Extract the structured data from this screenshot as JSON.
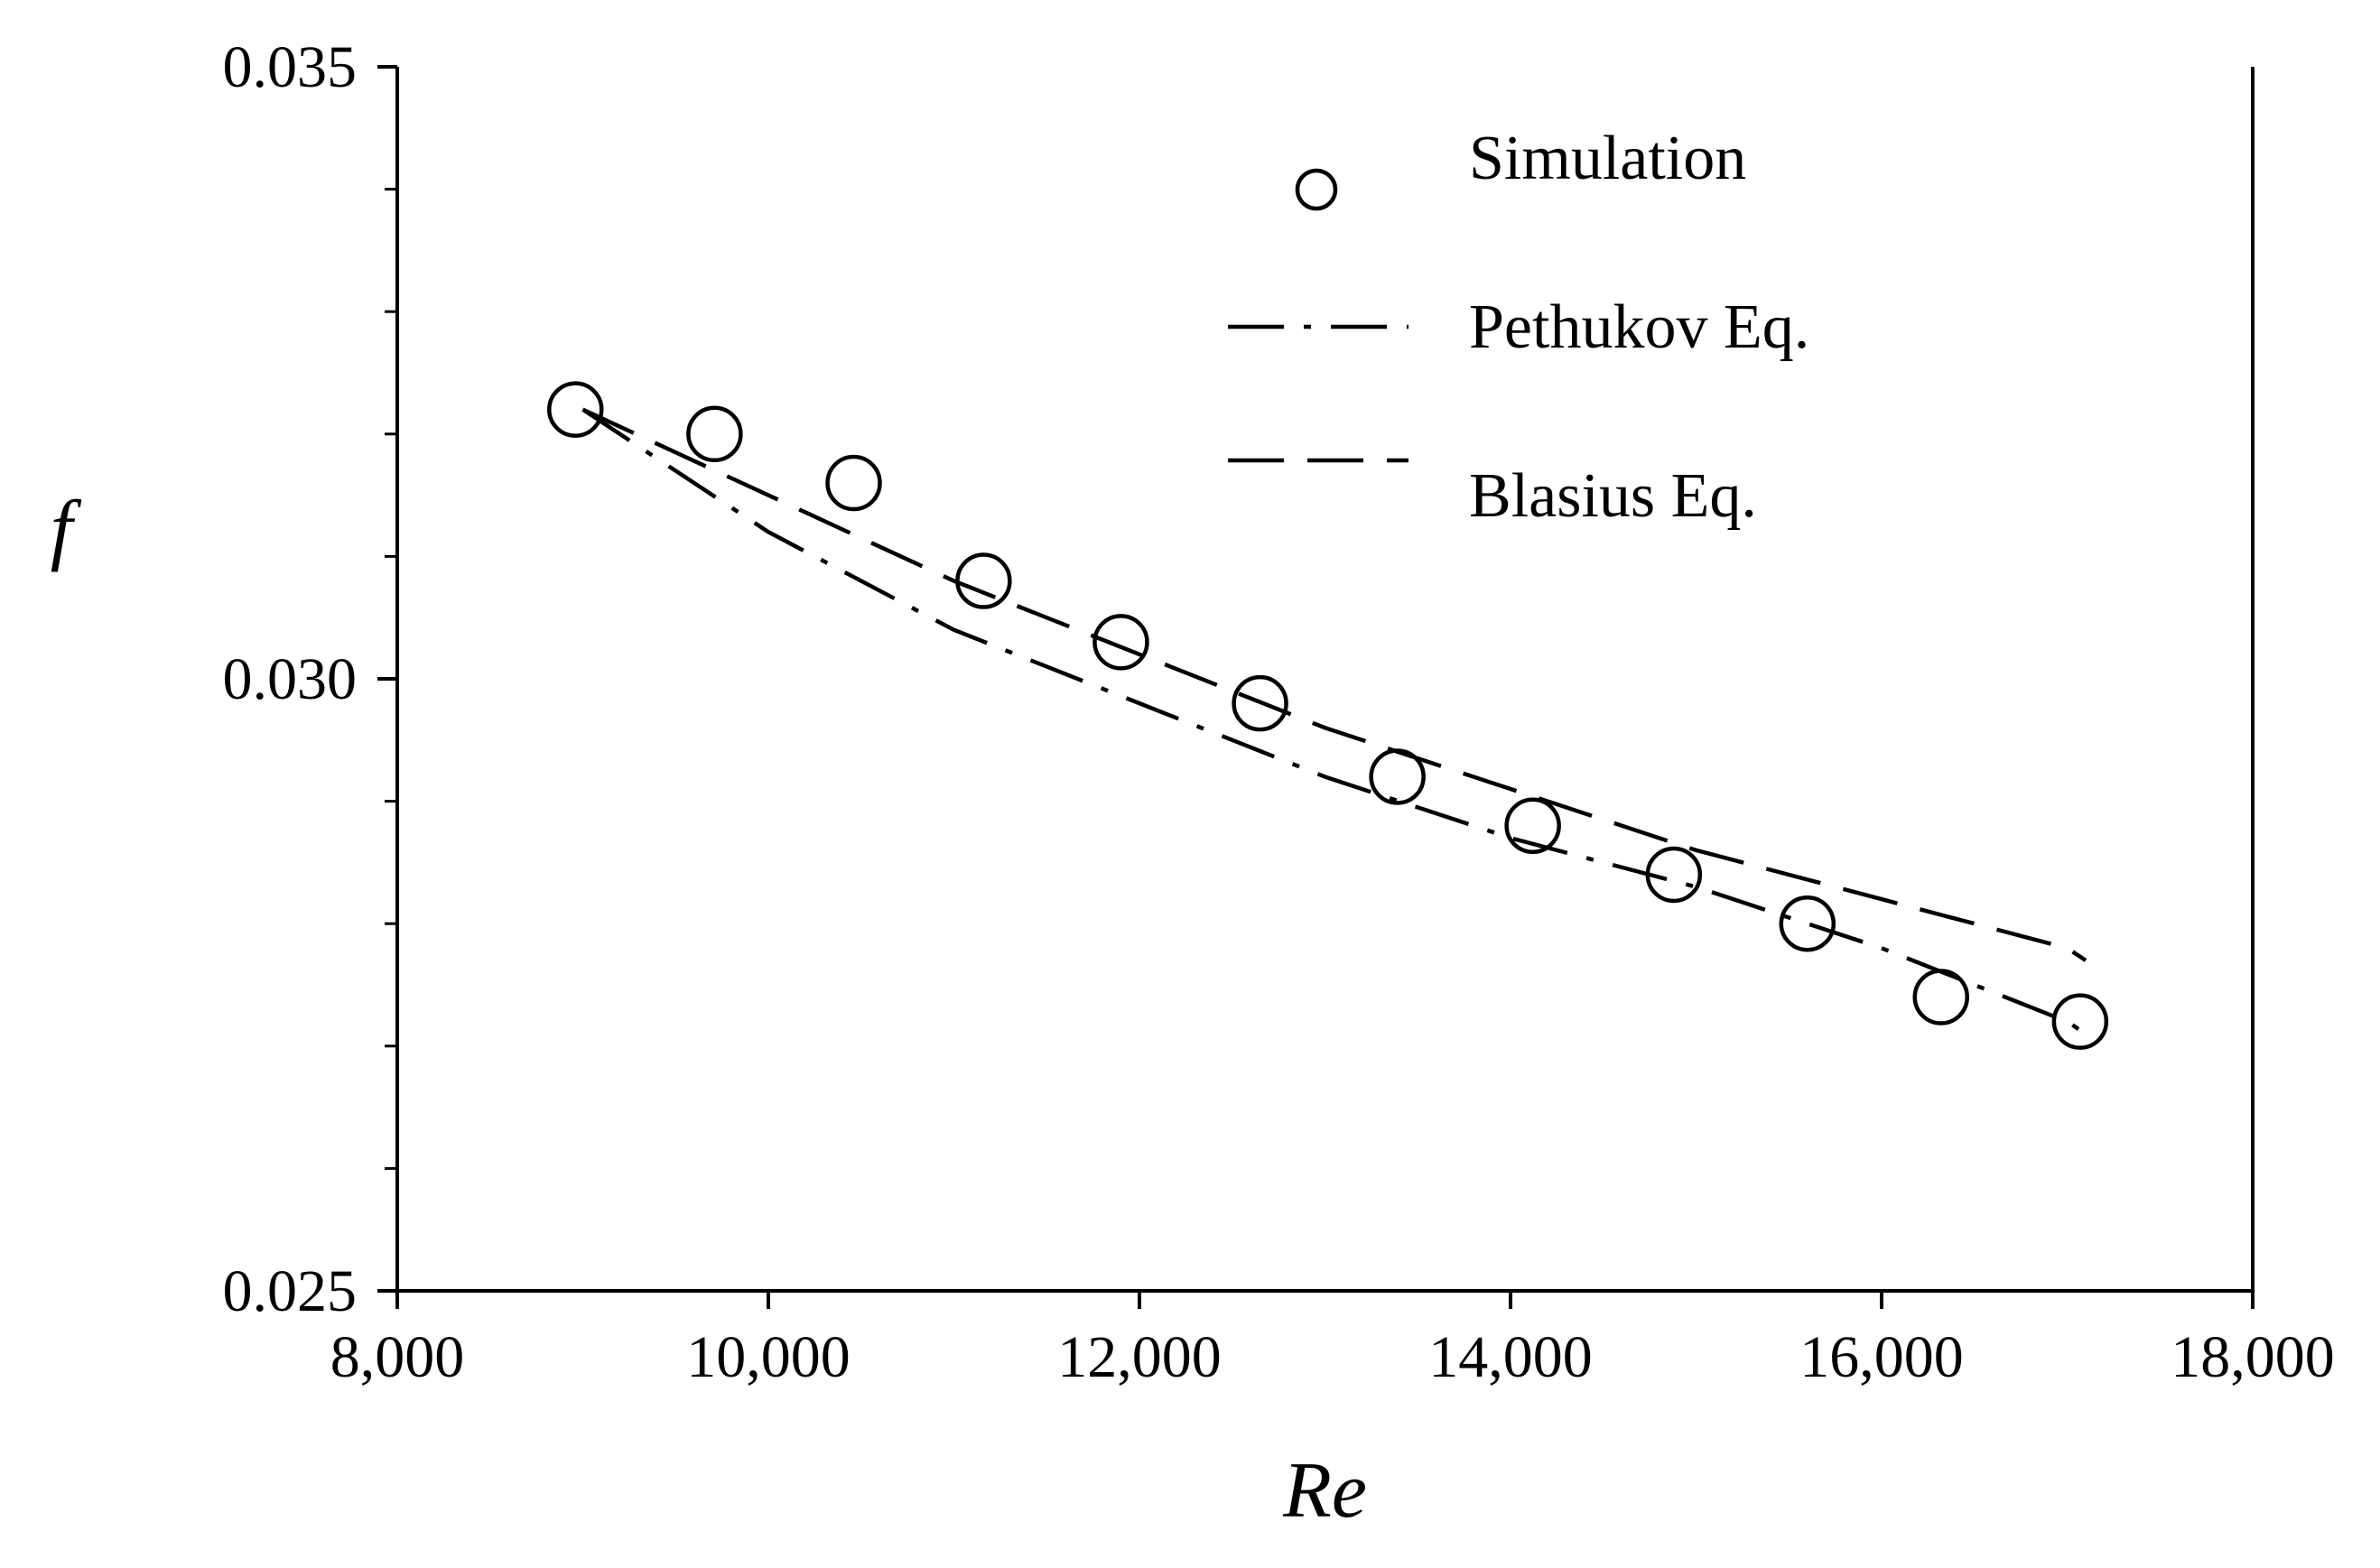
{
  "chart_data": {
    "type": "scatter",
    "title": "",
    "xlabel": "Re",
    "ylabel": "f",
    "xlim": [
      8000,
      18000
    ],
    "ylim": [
      0.025,
      0.035
    ],
    "x_major_ticks": [
      8000,
      10000,
      12000,
      14000,
      16000,
      18000
    ],
    "x_tick_labels": [
      "8,000",
      "10,000",
      "12,000",
      "14,000",
      "16,000",
      "18,000"
    ],
    "y_major_ticks": [
      0.025,
      0.03,
      0.035
    ],
    "y_tick_labels": [
      "0.025",
      "0.030",
      "0.035"
    ],
    "y_minor_ticks": [
      0.026,
      0.027,
      0.028,
      0.029,
      0.031,
      0.032,
      0.033,
      0.034
    ],
    "grid": false,
    "legend_position": "top-right",
    "series": [
      {
        "name": "Simulation",
        "style": "open-circle",
        "x": [
          8960,
          9710,
          10460,
          11160,
          11900,
          12650,
          13390,
          14120,
          14880,
          15600,
          16320,
          17070
        ],
        "y": [
          0.0322,
          0.032,
          0.0316,
          0.0308,
          0.0303,
          0.0298,
          0.0292,
          0.0288,
          0.0284,
          0.028,
          0.0274,
          0.0272
        ]
      },
      {
        "name": "Pethukov Eq.",
        "style": "dash-dot",
        "x": [
          9000,
          10000,
          11000,
          12000,
          13000,
          14000,
          15000,
          16000,
          17000,
          17100
        ],
        "y": [
          0.0322,
          0.0312,
          0.0304,
          0.0298,
          0.0292,
          0.0287,
          0.0283,
          0.0278,
          0.0272,
          0.0271
        ]
      },
      {
        "name": "Blasius Eq.",
        "style": "dashed",
        "x": [
          9000,
          10000,
          11000,
          12000,
          13000,
          14000,
          15000,
          16000,
          17000,
          17100
        ],
        "y": [
          0.0322,
          0.0315,
          0.0308,
          0.0302,
          0.0296,
          0.0291,
          0.0286,
          0.0282,
          0.0278,
          0.0277
        ]
      }
    ]
  }
}
